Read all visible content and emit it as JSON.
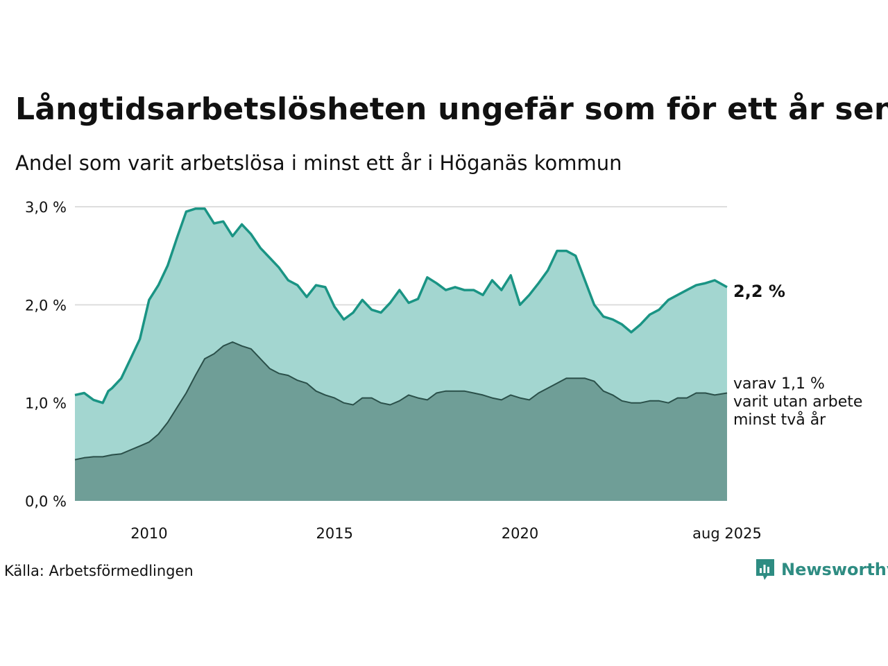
{
  "title": "Långtidsarbetslösheten ungefär som för ett år sen",
  "subtitle": "Andel som varit arbetslösa i minst ett år i Höganäs kommun",
  "source": "Källa: Arbetsförmedlingen",
  "brand": {
    "name": "Newsworthy",
    "icon": "newsworthy-logo-icon"
  },
  "colors": {
    "total_line": "#1a9484",
    "total_fill": "#a3d6d0",
    "sub_line": "#2a4f49",
    "sub_fill": "#6f9e97",
    "grid": "#dddddd"
  },
  "chart_data": {
    "type": "area",
    "x_range": [
      2008.0,
      2025.583
    ],
    "ylim": [
      0,
      3
    ],
    "yticks": [
      {
        "value": 0,
        "label": "0,0 %"
      },
      {
        "value": 1,
        "label": "1,0 %"
      },
      {
        "value": 2,
        "label": "2,0 %"
      },
      {
        "value": 3,
        "label": "3,0 %"
      }
    ],
    "xticks": [
      {
        "value": 2010,
        "label": "2010"
      },
      {
        "value": 2015,
        "label": "2015"
      },
      {
        "value": 2020,
        "label": "2020"
      },
      {
        "value": 2025.583,
        "label": "aug 2025"
      }
    ],
    "grid": true,
    "end_label": "2,2 %",
    "sub_label_lines": [
      "varav 1,1 %",
      "varit utan arbete",
      "minst två år"
    ],
    "series": [
      {
        "key": "total",
        "x": [
          2008.0,
          2008.25,
          2008.5,
          2008.75,
          2008.9,
          2009.0,
          2009.25,
          2009.5,
          2009.75,
          2010.0,
          2010.25,
          2010.5,
          2010.75,
          2011.0,
          2011.25,
          2011.5,
          2011.75,
          2012.0,
          2012.25,
          2012.5,
          2012.75,
          2013.0,
          2013.25,
          2013.5,
          2013.75,
          2014.0,
          2014.25,
          2014.5,
          2014.75,
          2015.0,
          2015.25,
          2015.5,
          2015.75,
          2016.0,
          2016.25,
          2016.5,
          2016.75,
          2017.0,
          2017.25,
          2017.5,
          2017.75,
          2018.0,
          2018.25,
          2018.5,
          2018.75,
          2019.0,
          2019.25,
          2019.5,
          2019.75,
          2020.0,
          2020.25,
          2020.5,
          2020.75,
          2021.0,
          2021.25,
          2021.5,
          2021.75,
          2022.0,
          2022.25,
          2022.5,
          2022.75,
          2023.0,
          2023.25,
          2023.5,
          2023.75,
          2024.0,
          2024.25,
          2024.5,
          2024.75,
          2025.0,
          2025.25,
          2025.583
        ],
        "values": [
          1.08,
          1.1,
          1.03,
          1.0,
          1.12,
          1.15,
          1.25,
          1.45,
          1.65,
          2.05,
          2.2,
          2.4,
          2.68,
          2.95,
          2.98,
          2.98,
          2.83,
          2.85,
          2.7,
          2.82,
          2.72,
          2.58,
          2.48,
          2.38,
          2.25,
          2.2,
          2.08,
          2.2,
          2.18,
          1.98,
          1.85,
          1.92,
          2.05,
          1.95,
          1.92,
          2.02,
          2.15,
          2.02,
          2.06,
          2.28,
          2.22,
          2.15,
          2.18,
          2.15,
          2.15,
          2.1,
          2.25,
          2.15,
          2.3,
          2.0,
          2.1,
          2.22,
          2.35,
          2.55,
          2.55,
          2.5,
          2.25,
          2.0,
          1.88,
          1.85,
          1.8,
          1.72,
          1.8,
          1.9,
          1.95,
          2.05,
          2.1,
          2.15,
          2.2,
          2.22,
          2.25,
          2.18
        ]
      },
      {
        "key": "over_two_years",
        "x": [
          2008.0,
          2008.25,
          2008.5,
          2008.75,
          2009.0,
          2009.25,
          2009.5,
          2009.75,
          2010.0,
          2010.25,
          2010.5,
          2010.75,
          2011.0,
          2011.25,
          2011.5,
          2011.75,
          2012.0,
          2012.25,
          2012.5,
          2012.75,
          2013.0,
          2013.25,
          2013.5,
          2013.75,
          2014.0,
          2014.25,
          2014.5,
          2014.75,
          2015.0,
          2015.25,
          2015.5,
          2015.75,
          2016.0,
          2016.25,
          2016.5,
          2016.75,
          2017.0,
          2017.25,
          2017.5,
          2017.75,
          2018.0,
          2018.25,
          2018.5,
          2018.75,
          2019.0,
          2019.25,
          2019.5,
          2019.75,
          2020.0,
          2020.25,
          2020.5,
          2020.75,
          2021.0,
          2021.25,
          2021.5,
          2021.75,
          2022.0,
          2022.25,
          2022.5,
          2022.75,
          2023.0,
          2023.25,
          2023.5,
          2023.75,
          2024.0,
          2024.25,
          2024.5,
          2024.75,
          2025.0,
          2025.25,
          2025.583
        ],
        "values": [
          0.42,
          0.44,
          0.45,
          0.45,
          0.47,
          0.48,
          0.52,
          0.56,
          0.6,
          0.68,
          0.8,
          0.95,
          1.1,
          1.28,
          1.45,
          1.5,
          1.58,
          1.62,
          1.58,
          1.55,
          1.45,
          1.35,
          1.3,
          1.28,
          1.23,
          1.2,
          1.12,
          1.08,
          1.05,
          1.0,
          0.98,
          1.05,
          1.05,
          1.0,
          0.98,
          1.02,
          1.08,
          1.05,
          1.03,
          1.1,
          1.12,
          1.12,
          1.12,
          1.1,
          1.08,
          1.05,
          1.03,
          1.08,
          1.05,
          1.03,
          1.1,
          1.15,
          1.2,
          1.25,
          1.25,
          1.25,
          1.22,
          1.12,
          1.08,
          1.02,
          1.0,
          1.0,
          1.02,
          1.02,
          1.0,
          1.05,
          1.05,
          1.1,
          1.1,
          1.08,
          1.1
        ]
      }
    ]
  }
}
